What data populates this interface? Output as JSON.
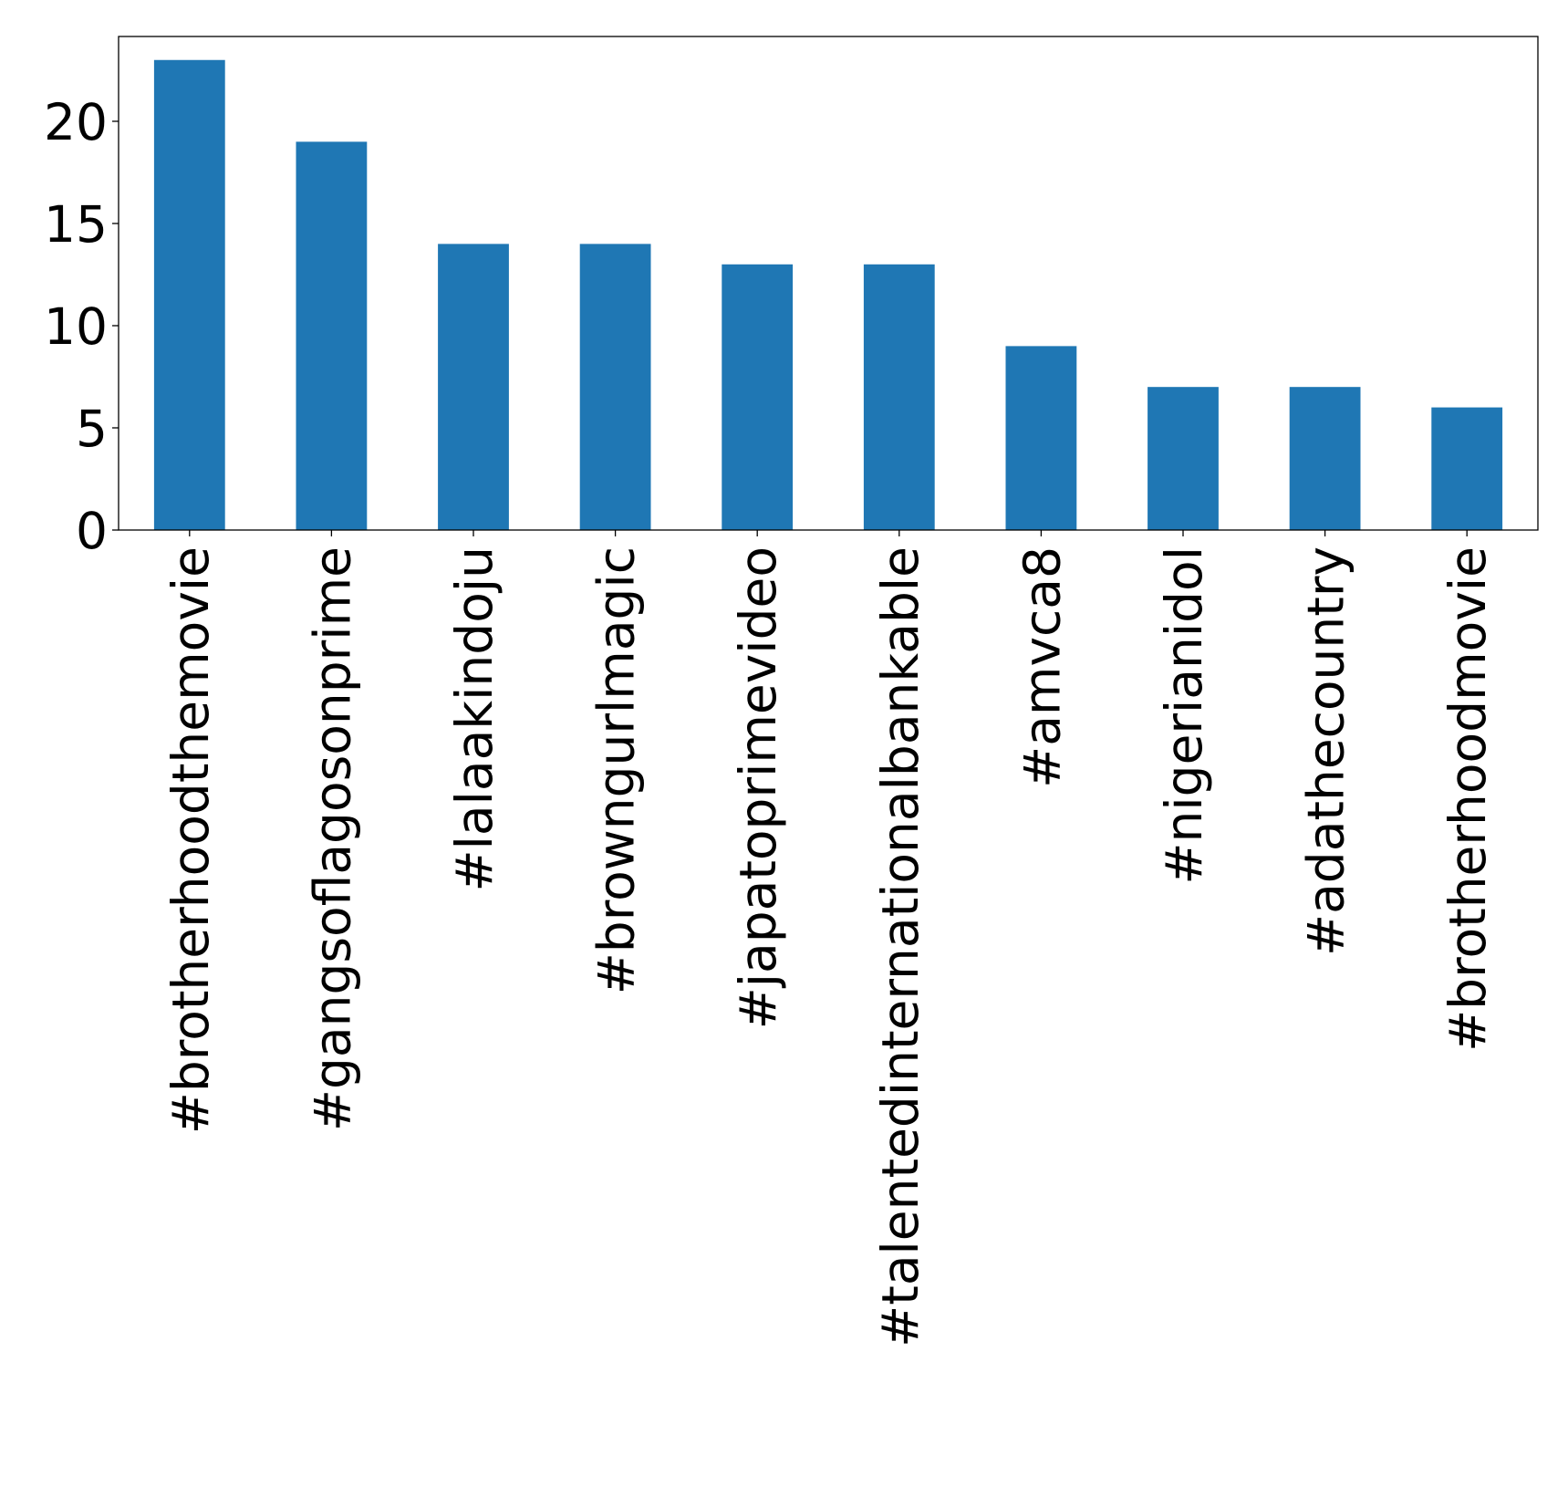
{
  "chart_data": {
    "type": "bar",
    "title": "",
    "xlabel": "",
    "ylabel": "",
    "categories": [
      "#brotherhoodthemovie",
      "#gangsoflagosonprime",
      "#lalaakindoju",
      "#browngurlmagic",
      "#japatoprimevideo",
      "#talentedinternationalbankable",
      "#amvca8",
      "#nigerianidol",
      "#adathecountry",
      "#brotherhoodmovie"
    ],
    "values": [
      23,
      19,
      14,
      14,
      13,
      13,
      9,
      7,
      7,
      6
    ],
    "ylim": [
      0,
      24.15
    ],
    "yticks": [
      0,
      5,
      10,
      15,
      20
    ],
    "grid": false,
    "legend": "none",
    "bar_color": "#1f77b4"
  }
}
